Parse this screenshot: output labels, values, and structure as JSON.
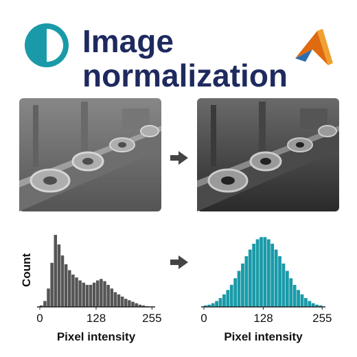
{
  "header": {
    "title": [
      "Image",
      "normalization"
    ]
  },
  "chart_data": [
    {
      "type": "histogram",
      "y_label": "Count",
      "x_label": "Pixel intensity",
      "color": "#555555",
      "bins": [
        0,
        8,
        16,
        24,
        32,
        40,
        48,
        56,
        64,
        72,
        80,
        88,
        96,
        104,
        112,
        120,
        128,
        136,
        144,
        152,
        160,
        168,
        176,
        184,
        192,
        200,
        208,
        216,
        224,
        232,
        240,
        248,
        256
      ],
      "counts": [
        2,
        8,
        25,
        60,
        98,
        85,
        70,
        58,
        50,
        44,
        40,
        36,
        33,
        30,
        30,
        33,
        36,
        38,
        35,
        30,
        25,
        20,
        17,
        14,
        11,
        9,
        7,
        5,
        3,
        2,
        1,
        0
      ],
      "xlim": [
        0,
        256
      ],
      "ylim": [
        0,
        100
      ],
      "xticks": [
        0,
        128,
        255
      ]
    },
    {
      "type": "histogram",
      "x_label": "Pixel intensity",
      "color": "#1a9aa8",
      "bins": [
        0,
        8,
        16,
        24,
        32,
        40,
        48,
        56,
        64,
        72,
        80,
        88,
        96,
        104,
        112,
        120,
        128,
        136,
        144,
        152,
        160,
        168,
        176,
        184,
        192,
        200,
        208,
        216,
        224,
        232,
        240,
        248,
        256
      ],
      "counts": [
        2,
        3,
        5,
        8,
        12,
        17,
        23,
        30,
        39,
        49,
        59,
        69,
        78,
        86,
        92,
        95,
        95,
        92,
        86,
        78,
        69,
        59,
        49,
        39,
        30,
        23,
        17,
        12,
        8,
        5,
        3,
        2
      ],
      "xlim": [
        0,
        256
      ],
      "ylim": [
        0,
        100
      ],
      "xticks": [
        0,
        128,
        255
      ]
    }
  ]
}
